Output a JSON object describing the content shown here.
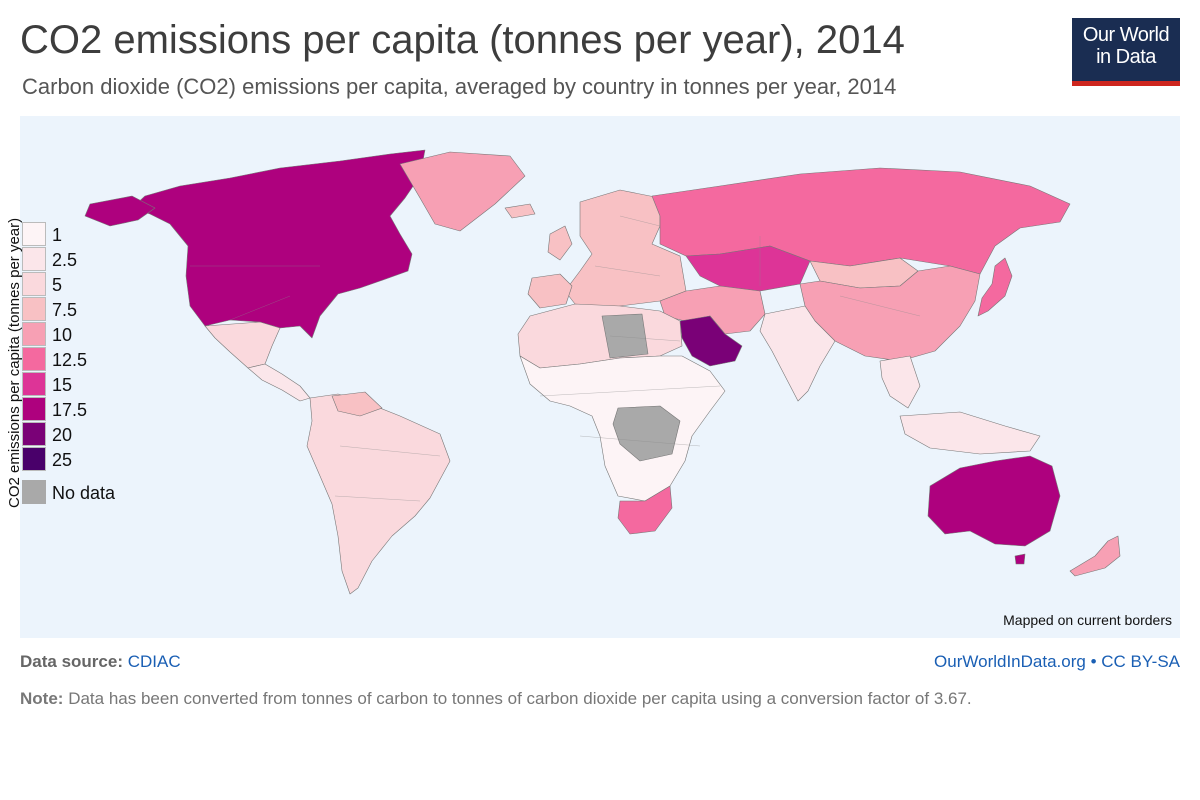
{
  "header": {
    "title": "CO2 emissions per capita (tonnes per year), 2014",
    "subtitle": "Carbon dioxide (CO2) emissions per capita, averaged by country in tonnes per year, 2014"
  },
  "logo": {
    "line1": "Our World",
    "line2": "in Data"
  },
  "map": {
    "mapped_note": "Mapped on current borders",
    "ocean_color": "#ecf4fc",
    "no_data_color": "#a9a9a9",
    "regions": [
      {
        "name": "North America",
        "bin": "17.5"
      },
      {
        "name": "Greenland",
        "bin": "10"
      },
      {
        "name": "Mexico",
        "bin": "5"
      },
      {
        "name": "Central America",
        "bin": "2.5"
      },
      {
        "name": "South America",
        "bin": "5"
      },
      {
        "name": "Venezuela",
        "bin": "7.5"
      },
      {
        "name": "Europe",
        "bin": "7.5"
      },
      {
        "name": "Russia",
        "bin": "12.5"
      },
      {
        "name": "Kazakhstan",
        "bin": "15"
      },
      {
        "name": "Mongolia",
        "bin": "7.5"
      },
      {
        "name": "China",
        "bin": "10"
      },
      {
        "name": "Japan",
        "bin": "12.5"
      },
      {
        "name": "India",
        "bin": "2.5"
      },
      {
        "name": "Middle East",
        "bin": "10"
      },
      {
        "name": "Saudi Arabia",
        "bin": "20"
      },
      {
        "name": "North Africa",
        "bin": "5"
      },
      {
        "name": "Libya",
        "bin": "No data"
      },
      {
        "name": "Central Africa",
        "bin": "1"
      },
      {
        "name": "DR Congo",
        "bin": "No data"
      },
      {
        "name": "South Africa",
        "bin": "12.5"
      },
      {
        "name": "Southeast Asia",
        "bin": "2.5"
      },
      {
        "name": "Australia",
        "bin": "17.5"
      },
      {
        "name": "New Zealand",
        "bin": "10"
      }
    ]
  },
  "legend": {
    "title": "CO2 emissions per capita (tonnes per year)",
    "items": [
      {
        "label": "1",
        "color": "#fdf4f6"
      },
      {
        "label": "2.5",
        "color": "#fbe6ea"
      },
      {
        "label": "5",
        "color": "#fad9dd"
      },
      {
        "label": "7.5",
        "color": "#f8c1c4"
      },
      {
        "label": "10",
        "color": "#f7a0b4"
      },
      {
        "label": "12.5",
        "color": "#f4699f"
      },
      {
        "label": "15",
        "color": "#dd3497"
      },
      {
        "label": "17.5",
        "color": "#ae017e"
      },
      {
        "label": "20",
        "color": "#7a0177"
      },
      {
        "label": "25",
        "color": "#49006a"
      }
    ],
    "no_data_label": "No data",
    "no_data_color": "#a9a9a9"
  },
  "footer": {
    "source_label": "Data source:",
    "source_link": "CDIAC",
    "site_link": "OurWorldInData.org",
    "separator": "•",
    "license": "CC BY-SA",
    "note_label": "Note:",
    "note_text": "Data has been converted from tonnes of carbon to tonnes of carbon dioxide per capita using a conversion factor of 3.67."
  }
}
